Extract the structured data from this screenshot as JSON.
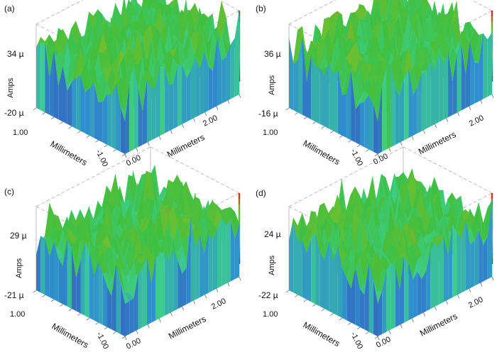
{
  "chart_data": [
    {
      "panel": "(a)",
      "type": "surface3d",
      "zlabel": "Amps",
      "zmax_label": "34 µ",
      "zmin_label": "-20 µ",
      "zlim": [
        -20,
        34
      ],
      "x_label": "Millimeters",
      "x_ticks": [
        "0.00",
        "2.00"
      ],
      "y_label": "Millimeters",
      "y_ticks": [
        "1.00",
        "-1.00"
      ],
      "colormap": [
        "#3b2fa0",
        "#2f8fcf",
        "#3ccf8a",
        "#3fbf3f",
        "#6fbf2f",
        "#c0392b"
      ]
    },
    {
      "panel": "(b)",
      "type": "surface3d",
      "zlabel": "Amps",
      "zmax_label": "36 µ",
      "zmin_label": "-16 µ",
      "zlim": [
        -16,
        36
      ],
      "x_label": "Millimeters",
      "x_ticks": [
        "0.00",
        "2.00"
      ],
      "y_label": "Millimeters",
      "y_ticks": [
        "1.00",
        "-1.00"
      ],
      "colormap": [
        "#3b2fa0",
        "#2f8fcf",
        "#3ccf8a",
        "#3fbf3f",
        "#6fbf2f",
        "#c0392b"
      ]
    },
    {
      "panel": "(c)",
      "type": "surface3d",
      "zlabel": "Amps",
      "zmax_label": "29 µ",
      "zmin_label": "-21 µ",
      "zlim": [
        -21,
        29
      ],
      "x_label": "Millimeters",
      "x_ticks": [
        "0.00",
        "2.00"
      ],
      "y_label": "Millimeters",
      "y_ticks": [
        "1.00",
        "-1.00"
      ],
      "colormap": [
        "#3b2fa0",
        "#2f8fcf",
        "#3ccf8a",
        "#3fbf3f",
        "#6fbf2f",
        "#c0392b"
      ]
    },
    {
      "panel": "(d)",
      "type": "surface3d",
      "zlabel": "Amps",
      "zmax_label": "24 µ",
      "zmin_label": "-22 µ",
      "zlim": [
        -22,
        24
      ],
      "x_label": "Millimeters",
      "x_ticks": [
        "0.00",
        "2.00"
      ],
      "y_label": "Millimeters",
      "y_ticks": [
        "1.00",
        "-1.00"
      ],
      "colormap": [
        "#3b2fa0",
        "#2f8fcf",
        "#3ccf8a",
        "#3fbf3f",
        "#6fbf2f",
        "#c0392b"
      ]
    }
  ]
}
